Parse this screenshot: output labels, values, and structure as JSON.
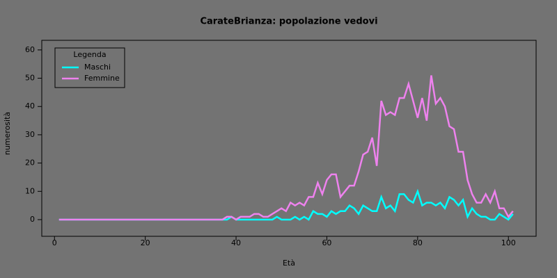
{
  "chart_data": {
    "type": "line",
    "title": "CarateBrianza: popolazione vedovi",
    "x_label": "Età",
    "y_label": "numerosità",
    "x": [
      1,
      2,
      3,
      4,
      5,
      6,
      7,
      8,
      9,
      10,
      11,
      12,
      13,
      14,
      15,
      16,
      17,
      18,
      19,
      20,
      21,
      22,
      23,
      24,
      25,
      26,
      27,
      28,
      29,
      30,
      31,
      32,
      33,
      34,
      35,
      36,
      37,
      38,
      39,
      40,
      41,
      42,
      43,
      44,
      45,
      46,
      47,
      48,
      49,
      50,
      51,
      52,
      53,
      54,
      55,
      56,
      57,
      58,
      59,
      60,
      61,
      62,
      63,
      64,
      65,
      66,
      67,
      68,
      69,
      70,
      71,
      72,
      73,
      74,
      75,
      76,
      77,
      78,
      79,
      80,
      81,
      82,
      83,
      84,
      85,
      86,
      87,
      88,
      89,
      90,
      91,
      92,
      93,
      94,
      95,
      96,
      97,
      98,
      99,
      100,
      101
    ],
    "series": [
      {
        "name": "Maschi",
        "color": "#00ffff",
        "values": [
          0,
          0,
          0,
          0,
          0,
          0,
          0,
          0,
          0,
          0,
          0,
          0,
          0,
          0,
          0,
          0,
          0,
          0,
          0,
          0,
          0,
          0,
          0,
          0,
          0,
          0,
          0,
          0,
          0,
          0,
          0,
          0,
          0,
          0,
          0,
          0,
          0,
          0,
          1,
          0,
          0,
          0,
          0,
          0,
          0,
          0,
          0,
          0,
          1,
          0,
          0,
          0,
          1,
          0,
          1,
          0,
          3,
          2,
          2,
          1,
          3,
          2,
          3,
          3,
          5,
          4,
          2,
          5,
          4,
          3,
          3,
          8,
          4,
          5,
          3,
          9,
          9,
          7,
          6,
          10,
          5,
          6,
          6,
          5,
          6,
          4,
          8,
          7,
          5,
          7,
          1,
          4,
          2,
          1,
          1,
          0,
          0,
          2,
          1,
          0,
          2
        ]
      },
      {
        "name": "Femmine",
        "color": "#ee82ee",
        "values": [
          0,
          0,
          0,
          0,
          0,
          0,
          0,
          0,
          0,
          0,
          0,
          0,
          0,
          0,
          0,
          0,
          0,
          0,
          0,
          0,
          0,
          0,
          0,
          0,
          0,
          0,
          0,
          0,
          0,
          0,
          0,
          0,
          0,
          0,
          0,
          0,
          0,
          1,
          1,
          0,
          1,
          1,
          1,
          2,
          2,
          1,
          1,
          2,
          3,
          4,
          3,
          6,
          5,
          6,
          5,
          8,
          8,
          13,
          9,
          14,
          16,
          16,
          8,
          10,
          12,
          12,
          17,
          23,
          24,
          29,
          19,
          42,
          37,
          38,
          37,
          43,
          43,
          48,
          42,
          36,
          43,
          35,
          51,
          41,
          43,
          40,
          33,
          32,
          24,
          24,
          14,
          9,
          6,
          6,
          9,
          6,
          10,
          4,
          4,
          1,
          3
        ]
      }
    ],
    "xlim": [
      -2.8,
      106.1
    ],
    "ylim": [
      -5.9,
      63.4
    ],
    "xticks": [
      0,
      20,
      40,
      60,
      80,
      100
    ],
    "yticks": [
      0,
      10,
      20,
      30,
      40,
      50,
      60
    ],
    "legend": {
      "title": "Legenda",
      "position": "topleft"
    }
  }
}
